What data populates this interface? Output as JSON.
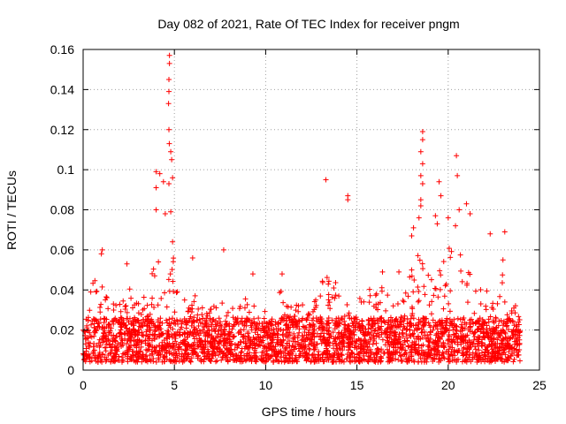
{
  "chart_data": {
    "type": "scatter",
    "title": "Day 082 of 2021, Rate Of TEC Index for receiver pngm",
    "xlabel": "GPS time / hours",
    "ylabel": "ROTI / TECUs",
    "xlim": [
      0,
      25
    ],
    "ylim": [
      0,
      0.16
    ],
    "xticks": [
      "0",
      "5",
      "10",
      "15",
      "20",
      "25"
    ],
    "yticks": [
      "0",
      "0.02",
      "0.04",
      "0.06",
      "0.08",
      "0.1",
      "0.12",
      "0.14",
      "0.16"
    ],
    "grid": true,
    "marker": "plus",
    "colors": {
      "series": "#ff0000",
      "grid": "#a0a0a0",
      "axes": "#000000"
    },
    "series": [
      {
        "name": "ROTI",
        "spikes": [
          {
            "x": 4.73,
            "y": 0.157
          },
          {
            "x": 4.73,
            "y": 0.153
          },
          {
            "x": 4.7,
            "y": 0.145
          },
          {
            "x": 4.7,
            "y": 0.139
          },
          {
            "x": 4.68,
            "y": 0.133
          },
          {
            "x": 4.7,
            "y": 0.12
          },
          {
            "x": 4.72,
            "y": 0.113
          },
          {
            "x": 4.8,
            "y": 0.109
          },
          {
            "x": 4.85,
            "y": 0.105
          },
          {
            "x": 4.9,
            "y": 0.096
          },
          {
            "x": 4.7,
            "y": 0.093
          },
          {
            "x": 4.4,
            "y": 0.094
          },
          {
            "x": 4.2,
            "y": 0.098
          },
          {
            "x": 4.0,
            "y": 0.099
          },
          {
            "x": 4.0,
            "y": 0.091
          },
          {
            "x": 4.0,
            "y": 0.08
          },
          {
            "x": 4.5,
            "y": 0.078
          },
          {
            "x": 4.8,
            "y": 0.079
          },
          {
            "x": 4.9,
            "y": 0.064
          },
          {
            "x": 1.05,
            "y": 0.06
          },
          {
            "x": 1.0,
            "y": 0.058
          },
          {
            "x": 7.7,
            "y": 0.06
          },
          {
            "x": 6.0,
            "y": 0.056
          },
          {
            "x": 13.3,
            "y": 0.095
          },
          {
            "x": 14.5,
            "y": 0.087
          },
          {
            "x": 14.5,
            "y": 0.085
          },
          {
            "x": 18.6,
            "y": 0.119
          },
          {
            "x": 18.6,
            "y": 0.115
          },
          {
            "x": 18.5,
            "y": 0.109
          },
          {
            "x": 18.6,
            "y": 0.103
          },
          {
            "x": 18.5,
            "y": 0.097
          },
          {
            "x": 18.6,
            "y": 0.093
          },
          {
            "x": 18.5,
            "y": 0.085
          },
          {
            "x": 18.5,
            "y": 0.082
          },
          {
            "x": 18.4,
            "y": 0.076
          },
          {
            "x": 18.1,
            "y": 0.071
          },
          {
            "x": 18.0,
            "y": 0.067
          },
          {
            "x": 19.5,
            "y": 0.094
          },
          {
            "x": 19.6,
            "y": 0.087
          },
          {
            "x": 19.3,
            "y": 0.077
          },
          {
            "x": 19.4,
            "y": 0.073
          },
          {
            "x": 20.45,
            "y": 0.107
          },
          {
            "x": 20.5,
            "y": 0.097
          },
          {
            "x": 20.6,
            "y": 0.08
          },
          {
            "x": 20.4,
            "y": 0.072
          },
          {
            "x": 21.0,
            "y": 0.083
          },
          {
            "x": 21.2,
            "y": 0.078
          },
          {
            "x": 20.0,
            "y": 0.076
          },
          {
            "x": 22.3,
            "y": 0.068
          },
          {
            "x": 23.1,
            "y": 0.069
          },
          {
            "x": 23.0,
            "y": 0.055
          },
          {
            "x": 2.4,
            "y": 0.053
          },
          {
            "x": 9.3,
            "y": 0.048
          },
          {
            "x": 10.9,
            "y": 0.048
          },
          {
            "x": 16.4,
            "y": 0.049
          },
          {
            "x": 17.3,
            "y": 0.049
          }
        ],
        "envelope": [
          {
            "x": 0.0,
            "y": 0.024
          },
          {
            "x": 0.5,
            "y": 0.045
          },
          {
            "x": 1.0,
            "y": 0.046
          },
          {
            "x": 1.5,
            "y": 0.034
          },
          {
            "x": 2.0,
            "y": 0.036
          },
          {
            "x": 2.5,
            "y": 0.042
          },
          {
            "x": 3.0,
            "y": 0.04
          },
          {
            "x": 3.5,
            "y": 0.036
          },
          {
            "x": 3.8,
            "y": 0.06
          },
          {
            "x": 4.2,
            "y": 0.07
          },
          {
            "x": 4.5,
            "y": 0.066
          },
          {
            "x": 4.9,
            "y": 0.062
          },
          {
            "x": 5.3,
            "y": 0.033
          },
          {
            "x": 6.0,
            "y": 0.045
          },
          {
            "x": 6.5,
            "y": 0.035
          },
          {
            "x": 7.0,
            "y": 0.035
          },
          {
            "x": 7.7,
            "y": 0.046
          },
          {
            "x": 8.0,
            "y": 0.033
          },
          {
            "x": 8.5,
            "y": 0.03
          },
          {
            "x": 9.2,
            "y": 0.042
          },
          {
            "x": 9.8,
            "y": 0.03
          },
          {
            "x": 10.5,
            "y": 0.036
          },
          {
            "x": 11.0,
            "y": 0.042
          },
          {
            "x": 11.5,
            "y": 0.03
          },
          {
            "x": 12.0,
            "y": 0.038
          },
          {
            "x": 12.5,
            "y": 0.04
          },
          {
            "x": 13.0,
            "y": 0.045
          },
          {
            "x": 13.5,
            "y": 0.05
          },
          {
            "x": 14.0,
            "y": 0.042
          },
          {
            "x": 14.5,
            "y": 0.035
          },
          {
            "x": 15.0,
            "y": 0.035
          },
          {
            "x": 15.5,
            "y": 0.042
          },
          {
            "x": 16.0,
            "y": 0.04
          },
          {
            "x": 16.5,
            "y": 0.044
          },
          {
            "x": 17.0,
            "y": 0.034
          },
          {
            "x": 17.5,
            "y": 0.04
          },
          {
            "x": 18.0,
            "y": 0.05
          },
          {
            "x": 18.5,
            "y": 0.065
          },
          {
            "x": 19.0,
            "y": 0.045
          },
          {
            "x": 19.5,
            "y": 0.058
          },
          {
            "x": 20.0,
            "y": 0.06
          },
          {
            "x": 20.5,
            "y": 0.068
          },
          {
            "x": 21.0,
            "y": 0.062
          },
          {
            "x": 21.5,
            "y": 0.045
          },
          {
            "x": 22.0,
            "y": 0.04
          },
          {
            "x": 22.5,
            "y": 0.04
          },
          {
            "x": 23.0,
            "y": 0.048
          },
          {
            "x": 23.5,
            "y": 0.035
          },
          {
            "x": 23.9,
            "y": 0.03
          }
        ],
        "x_range": [
          0.0,
          23.95
        ],
        "baseline_y_range": [
          0.004,
          0.026
        ],
        "estimated_point_count": 3000
      }
    ]
  }
}
